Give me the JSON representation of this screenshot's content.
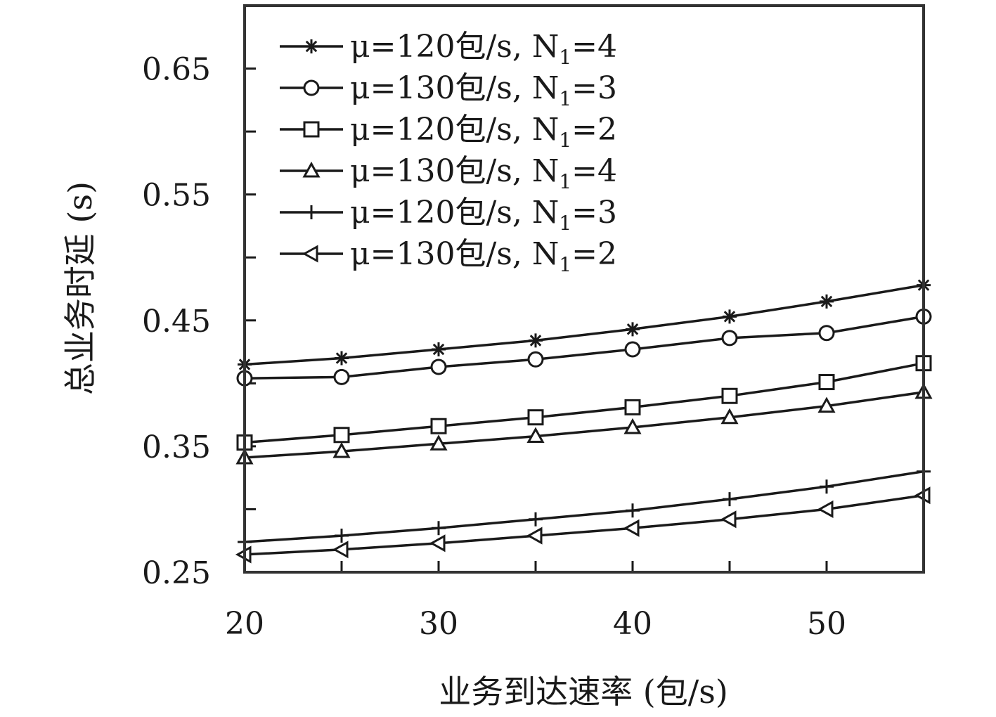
{
  "chart_data": {
    "type": "line",
    "xlabel": "业务到达速率 (包/s)",
    "ylabel": "总业务时延 (s)",
    "xlim": [
      20,
      55
    ],
    "ylim": [
      0.25,
      0.7
    ],
    "x_ticks": [
      20,
      30,
      40,
      50
    ],
    "x_tick_labels": [
      "20",
      "30",
      "40",
      "50"
    ],
    "y_ticks": [
      0.25,
      0.3,
      0.35,
      0.4,
      0.45,
      0.5,
      0.55,
      0.6,
      0.65
    ],
    "y_tick_labels": [
      "0.25",
      "",
      "0.35",
      "",
      "0.45",
      "",
      "0.55",
      "",
      "0.65"
    ],
    "grid": false,
    "legend_position": "top-left",
    "x": [
      20,
      25,
      30,
      35,
      40,
      45,
      50,
      55
    ],
    "series": [
      {
        "name": "μ=120包/s, N1=4",
        "label_parts": [
          "μ=120包/s, N",
          "1",
          "=4"
        ],
        "marker": "asterisk",
        "values": [
          0.415,
          0.42,
          0.427,
          0.434,
          0.443,
          0.453,
          0.465,
          0.478
        ]
      },
      {
        "name": "μ=130包/s, N1=3",
        "label_parts": [
          "μ=130包/s, N",
          "1",
          "=3"
        ],
        "marker": "circle",
        "values": [
          0.404,
          0.405,
          0.413,
          0.419,
          0.427,
          0.436,
          0.44,
          0.453
        ]
      },
      {
        "name": "μ=120包/s, N1=2",
        "label_parts": [
          "μ=120包/s, N",
          "1",
          "=2"
        ],
        "marker": "square",
        "values": [
          0.353,
          0.359,
          0.366,
          0.373,
          0.381,
          0.39,
          0.401,
          0.416
        ]
      },
      {
        "name": "μ=130包/s, N1=4",
        "label_parts": [
          "μ=130包/s, N",
          "1",
          "=4"
        ],
        "marker": "triangle",
        "values": [
          0.341,
          0.346,
          0.352,
          0.358,
          0.365,
          0.373,
          0.382,
          0.393
        ]
      },
      {
        "name": "μ=120包/s, N1=3",
        "label_parts": [
          "μ=120包/s, N",
          "1",
          "=3"
        ],
        "marker": "plus",
        "values": [
          0.274,
          0.279,
          0.285,
          0.292,
          0.299,
          0.308,
          0.318,
          0.33
        ]
      },
      {
        "name": "μ=130包/s, N1=2",
        "label_parts": [
          "μ=130包/s, N",
          "1",
          "=2"
        ],
        "marker": "triangle-left",
        "values": [
          0.264,
          0.268,
          0.273,
          0.279,
          0.285,
          0.292,
          0.3,
          0.311
        ]
      }
    ]
  }
}
